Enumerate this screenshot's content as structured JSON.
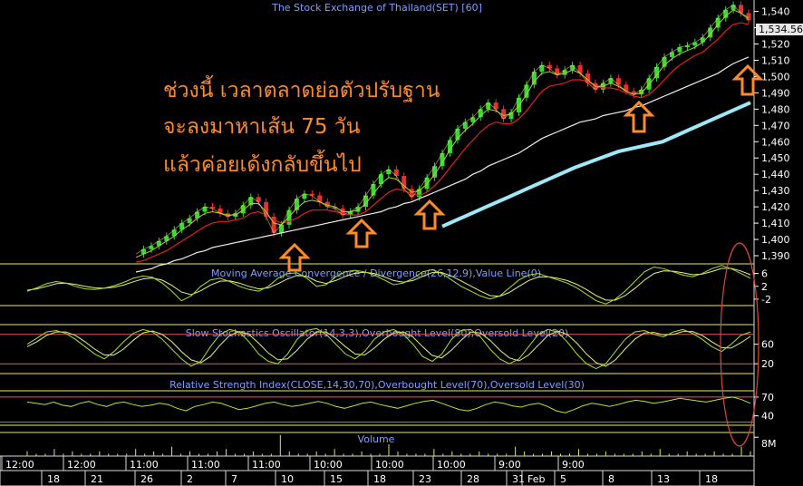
{
  "chart_data": {
    "type": "line",
    "title": "The Stock Exchange of Thailand(SET) [60]",
    "last_price": "1,534.56",
    "annotation_lines": [
      "ช่วงนี้ เวลาตลาดย่อตัวปรับฐาน",
      "จะลงมาหาเส้น 75 วัน",
      "แล้วค่อยเด้งกลับขึ้นไป"
    ],
    "price_axis": {
      "ylim": [
        1385,
        1547
      ],
      "ticks": [
        1540,
        1530,
        1520,
        1510,
        1500,
        1490,
        1480,
        1470,
        1460,
        1450,
        1440,
        1430,
        1420,
        1410,
        1400,
        1390
      ],
      "tick_labels": [
        "1,540",
        "1,530",
        "1,520",
        "1,510",
        "1,500",
        "1,490",
        "1,480",
        "1,470",
        "1,460",
        "1,450",
        "1,440",
        "1,430",
        "1,420",
        "1,410",
        "1,400",
        "1,390"
      ]
    },
    "price_series": {
      "close": [
        1391,
        1394,
        1396,
        1399,
        1402,
        1406,
        1410,
        1413,
        1417,
        1420,
        1419,
        1416,
        1414,
        1416,
        1421,
        1426,
        1423,
        1414,
        1404,
        1409,
        1418,
        1425,
        1428,
        1427,
        1423,
        1420,
        1419,
        1415,
        1417,
        1420,
        1427,
        1434,
        1440,
        1443,
        1439,
        1431,
        1426,
        1431,
        1438,
        1445,
        1453,
        1461,
        1468,
        1472,
        1475,
        1480,
        1484,
        1480,
        1474,
        1478,
        1487,
        1495,
        1503,
        1507,
        1505,
        1501,
        1504,
        1507,
        1502,
        1496,
        1492,
        1496,
        1499,
        1495,
        1491,
        1489,
        1492,
        1499,
        1506,
        1512,
        1515,
        1518,
        1519,
        1521,
        1524,
        1530,
        1536,
        1541,
        1544,
        1539,
        1534.56
      ],
      "ma_short": [
        1389,
        1391,
        1393,
        1396,
        1399,
        1402,
        1406,
        1409,
        1413,
        1416,
        1417,
        1416,
        1415,
        1415,
        1418,
        1422,
        1422,
        1417,
        1410,
        1409,
        1414,
        1419,
        1423,
        1424,
        1423,
        1421,
        1420,
        1417,
        1417,
        1418,
        1422,
        1428,
        1434,
        1438,
        1437,
        1433,
        1429,
        1430,
        1434,
        1440,
        1447,
        1455,
        1462,
        1467,
        1471,
        1476,
        1480,
        1479,
        1476,
        1477,
        1482,
        1489,
        1497,
        1502,
        1503,
        1501,
        1502,
        1504,
        1502,
        1498,
        1494,
        1494,
        1496,
        1494,
        1491,
        1489,
        1490,
        1495,
        1501,
        1507,
        1511,
        1514,
        1516,
        1518,
        1521,
        1526,
        1532,
        1537,
        1541,
        1539,
        1536
      ],
      "ma_mid": [
        1386,
        1387,
        1389,
        1391,
        1393,
        1396,
        1399,
        1402,
        1405,
        1408,
        1410,
        1411,
        1411,
        1412,
        1413,
        1416,
        1417,
        1415,
        1412,
        1410,
        1411,
        1413,
        1416,
        1418,
        1418,
        1418,
        1417,
        1416,
        1415,
        1415,
        1417,
        1421,
        1425,
        1429,
        1431,
        1430,
        1428,
        1427,
        1429,
        1433,
        1438,
        1444,
        1450,
        1456,
        1461,
        1466,
        1470,
        1472,
        1471,
        1471,
        1474,
        1479,
        1485,
        1491,
        1494,
        1495,
        1496,
        1498,
        1498,
        1497,
        1494,
        1493,
        1493,
        1492,
        1490,
        1488,
        1487,
        1489,
        1493,
        1498,
        1503,
        1507,
        1510,
        1513,
        1515,
        1519,
        1523,
        1528,
        1532,
        1533,
        1532
      ],
      "ma_long": [
        1380,
        1381,
        1382,
        1384,
        1385,
        1387,
        1388,
        1390,
        1392,
        1393,
        1395,
        1396,
        1397,
        1398,
        1399,
        1400,
        1401,
        1402,
        1403,
        1404,
        1405,
        1406,
        1407,
        1408,
        1409,
        1410,
        1411,
        1412,
        1413,
        1414,
        1415,
        1416,
        1417,
        1419,
        1420,
        1422,
        1423,
        1425,
        1427,
        1429,
        1431,
        1433,
        1435,
        1437,
        1440,
        1442,
        1445,
        1447,
        1449,
        1451,
        1453,
        1456,
        1459,
        1462,
        1464,
        1466,
        1468,
        1470,
        1472,
        1473,
        1474,
        1476,
        1477,
        1478,
        1479,
        1481,
        1482,
        1484,
        1486,
        1488,
        1490,
        1492,
        1494,
        1496,
        1498,
        1500,
        1502,
        1505,
        1508,
        1510,
        1512
      ],
      "ma_75_projection": [
        1408,
        1414,
        1420,
        1426,
        1432,
        1438,
        1444,
        1449,
        1454,
        1457,
        1460,
        1466,
        1472,
        1478,
        1484
      ]
    },
    "macd": {
      "title": "Moving Average Convergence / Divergence(26,12,9),Value Line(0)",
      "tick_labels": [
        "6",
        "2",
        "-2"
      ],
      "ticks": [
        6,
        2,
        -2
      ],
      "ylim": [
        -4,
        9
      ],
      "macd": [
        0.5,
        1.5,
        2.8,
        3.5,
        3.0,
        2.0,
        1.2,
        1.0,
        1.4,
        2.2,
        3.2,
        4.5,
        5.2,
        4.8,
        3.0,
        0.5,
        -2.5,
        -1.0,
        2.0,
        4.0,
        4.5,
        3.5,
        2.0,
        1.0,
        0.5,
        2.0,
        4.5,
        6.0,
        6.2,
        4.5,
        2.0,
        2.5,
        5.0,
        6.5,
        7.0,
        6.5,
        5.5,
        4.0,
        2.5,
        3.0,
        4.5,
        6.5,
        7.2,
        6.0,
        4.0,
        2.0,
        0.5,
        -1.0,
        -2.0,
        -1.0,
        1.5,
        4.0,
        5.5,
        6.0,
        5.0,
        4.0,
        3.0,
        1.5,
        -0.5,
        -2.5,
        -3.5,
        -2.0,
        0.5,
        3.5,
        6.5,
        8.0,
        7.5,
        6.5,
        5.5,
        5.0,
        6.0,
        7.5,
        8.5,
        7.5,
        6.0,
        4.5
      ],
      "signal": [
        0.8,
        1.2,
        2.0,
        2.8,
        3.0,
        2.6,
        2.0,
        1.5,
        1.4,
        1.7,
        2.4,
        3.4,
        4.3,
        4.6,
        3.9,
        2.3,
        0.2,
        -0.6,
        0.6,
        2.4,
        3.6,
        3.7,
        3.0,
        2.0,
        1.2,
        1.5,
        2.8,
        4.3,
        5.4,
        5.1,
        3.6,
        2.9,
        3.8,
        5.1,
        6.1,
        6.4,
        6.0,
        5.0,
        3.8,
        3.3,
        3.8,
        5.1,
        6.3,
        6.3,
        5.2,
        3.7,
        2.1,
        0.5,
        -0.9,
        -1.1,
        0.1,
        2.0,
        3.8,
        4.9,
        5.0,
        4.5,
        3.8,
        2.6,
        1.0,
        -0.9,
        -2.3,
        -2.3,
        -0.9,
        1.3,
        3.9,
        6.0,
        6.8,
        6.7,
        6.2,
        5.6,
        5.8,
        6.6,
        7.6,
        7.6,
        6.8,
        5.6
      ]
    },
    "stochastic": {
      "title": "Slow Stochastics Oscillator(14,3,3),Overbought Level(80),Oversold Level(20)",
      "tick_labels": [
        "60",
        "20"
      ],
      "ticks": [
        60,
        20
      ],
      "overbought": 80,
      "oversold": 20,
      "ylim": [
        0,
        100
      ],
      "k": [
        60,
        72,
        85,
        88,
        82,
        70,
        55,
        40,
        30,
        45,
        65,
        82,
        90,
        85,
        70,
        50,
        30,
        15,
        25,
        55,
        80,
        90,
        85,
        65,
        40,
        25,
        20,
        40,
        70,
        88,
        92,
        80,
        60,
        40,
        30,
        45,
        70,
        85,
        90,
        80,
        60,
        35,
        25,
        40,
        70,
        88,
        90,
        75,
        50,
        30,
        20,
        30,
        55,
        80,
        90,
        85,
        65,
        40,
        20,
        10,
        20,
        45,
        70,
        85,
        88,
        80,
        75,
        85,
        90,
        82,
        70,
        55,
        45,
        60,
        78,
        85
      ],
      "d": [
        55,
        65,
        78,
        85,
        85,
        78,
        65,
        50,
        38,
        38,
        50,
        68,
        83,
        87,
        80,
        65,
        45,
        28,
        22,
        35,
        58,
        78,
        86,
        80,
        62,
        42,
        28,
        30,
        48,
        70,
        85,
        85,
        72,
        55,
        40,
        38,
        52,
        70,
        83,
        85,
        75,
        55,
        37,
        32,
        48,
        68,
        85,
        83,
        68,
        48,
        32,
        26,
        38,
        58,
        78,
        87,
        80,
        62,
        40,
        22,
        15,
        28,
        50,
        70,
        83,
        84,
        79,
        80,
        86,
        86,
        78,
        65,
        53,
        52,
        63,
        76
      ]
    },
    "rsi": {
      "title": "Relative Strength Index(CLOSE,14,30,70),Overbought Level(70),Oversold Level(30)",
      "tick_labels": [
        "70",
        "40"
      ],
      "ticks": [
        70,
        40
      ],
      "overbought": 70,
      "oversold": 30,
      "ylim": [
        25,
        80
      ],
      "values": [
        62,
        60,
        58,
        62,
        57,
        55,
        60,
        63,
        58,
        55,
        60,
        62,
        58,
        55,
        57,
        60,
        58,
        52,
        48,
        55,
        58,
        62,
        60,
        55,
        50,
        52,
        56,
        60,
        62,
        58,
        55,
        57,
        60,
        63,
        60,
        55,
        52,
        56,
        60,
        62,
        58,
        55,
        52,
        56,
        60,
        63,
        65,
        60,
        55,
        50,
        48,
        52,
        58,
        62,
        60,
        56,
        54,
        58,
        60,
        55,
        48,
        45,
        50,
        56,
        60,
        58,
        55,
        58,
        62,
        65,
        63,
        60,
        62,
        65,
        68,
        66,
        64,
        62,
        65,
        68,
        70,
        66,
        60
      ]
    },
    "volume": {
      "title": "Volume",
      "tick_labels": [
        "8M"
      ],
      "ticks": [
        8
      ],
      "values": [
        2,
        1,
        1,
        3,
        1,
        2,
        1,
        1,
        2,
        1,
        1,
        1,
        3,
        1,
        2,
        1,
        4,
        1,
        2,
        1,
        1,
        2,
        3,
        1,
        1,
        2,
        1,
        1,
        9,
        2,
        1,
        1,
        2,
        1,
        3,
        1,
        1,
        2,
        1,
        1,
        5,
        2,
        1,
        1,
        1,
        3,
        1,
        2,
        1,
        1,
        2,
        1,
        1,
        1,
        4,
        2,
        1,
        1,
        2,
        1,
        1,
        3,
        1,
        1,
        2,
        1,
        1,
        1,
        2,
        1,
        3,
        1,
        1,
        2,
        1,
        1,
        2,
        1,
        1,
        4,
        2
      ]
    },
    "time_axis": {
      "upper_labels": [
        "12:00",
        "12:00",
        "11:00",
        "11:00",
        "11:00",
        "10:00",
        "10:00",
        "10:00",
        "9:00",
        "9:00"
      ],
      "lower_labels": [
        "18",
        "21",
        "26",
        "2",
        "7",
        "10",
        "15",
        "18",
        "23",
        "28",
        "31",
        "Feb",
        "5",
        "8",
        "13",
        "18"
      ]
    }
  }
}
